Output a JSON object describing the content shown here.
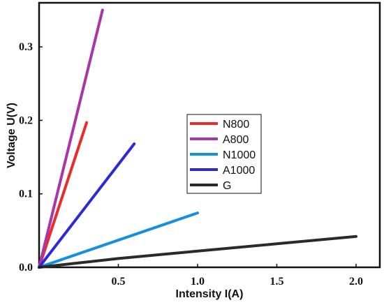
{
  "chart_data": {
    "type": "line",
    "xlabel": "Intensity  I(A)",
    "ylabel": "Voltage U(V)",
    "xlim": [
      0.0,
      2.15
    ],
    "ylim": [
      0.0,
      0.36
    ],
    "x_ticks": [
      0.5,
      1.0,
      1.5,
      2.0
    ],
    "x_tick_labels": [
      "0.5",
      "1.0",
      "1.5",
      "2.0"
    ],
    "y_ticks": [
      0.0,
      0.1,
      0.2,
      0.3
    ],
    "y_tick_labels": [
      "0.0",
      "0.1",
      "0.2",
      "0.3"
    ],
    "legend_placement": "center",
    "grid": false,
    "series": [
      {
        "name": "N800",
        "color": "#ee2b2b",
        "points": [
          [
            0.0,
            0.0
          ],
          [
            0.3,
            0.197
          ]
        ]
      },
      {
        "name": "A800",
        "color": "#a936a6",
        "points": [
          [
            0.0,
            0.0
          ],
          [
            0.4,
            0.35
          ]
        ]
      },
      {
        "name": "N1000",
        "color": "#158fe0",
        "points": [
          [
            0.0,
            0.0
          ],
          [
            1.0,
            0.074
          ]
        ]
      },
      {
        "name": "A1000",
        "color": "#2c2ad8",
        "points": [
          [
            0.0,
            0.0
          ],
          [
            0.6,
            0.168
          ]
        ]
      },
      {
        "name": "G",
        "color": "#2a2a2a",
        "points": [
          [
            0.0,
            0.0
          ],
          [
            0.5,
            0.012
          ],
          [
            1.0,
            0.022
          ],
          [
            1.5,
            0.032
          ],
          [
            2.0,
            0.042
          ]
        ]
      }
    ]
  }
}
